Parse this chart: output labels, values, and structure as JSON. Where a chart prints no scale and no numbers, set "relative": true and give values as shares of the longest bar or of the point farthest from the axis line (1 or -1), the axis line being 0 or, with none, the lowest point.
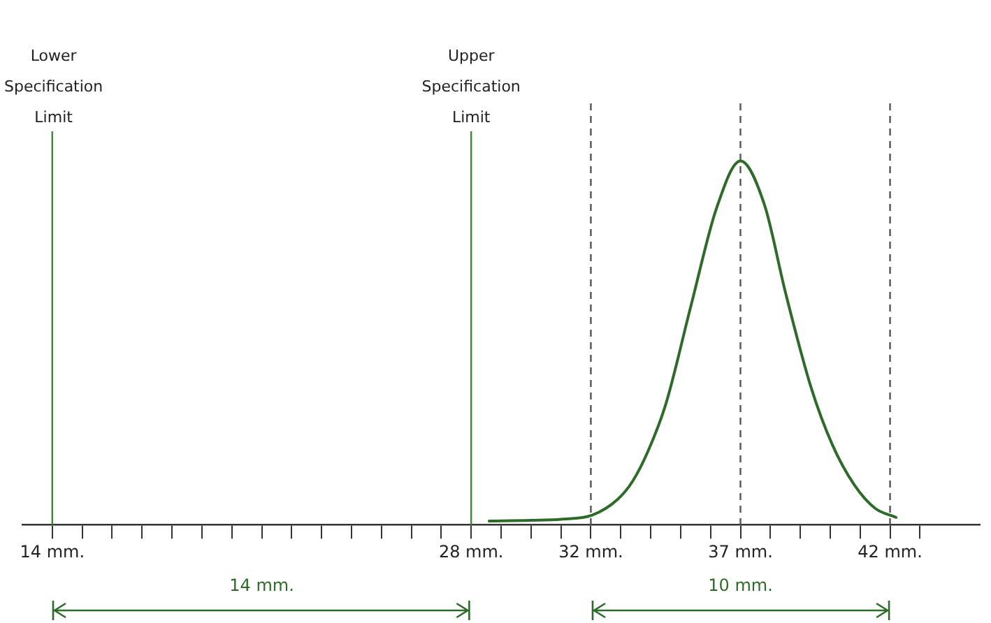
{
  "chart_data": {
    "type": "line",
    "relative": true,
    "tick_labels": "x",
    "marker": "none",
    "line_style": "solid",
    "legend": false,
    "xlim": [
      13,
      45
    ],
    "xticks": [
      {
        "value": 14,
        "label": "14 mm."
      },
      {
        "value": 15,
        "label": null
      },
      {
        "value": 16,
        "label": null
      },
      {
        "value": 17,
        "label": null
      },
      {
        "value": 18,
        "label": null
      },
      {
        "value": 19,
        "label": null
      },
      {
        "value": 20,
        "label": null
      },
      {
        "value": 21,
        "label": null
      },
      {
        "value": 22,
        "label": null
      },
      {
        "value": 23,
        "label": null
      },
      {
        "value": 24,
        "label": null
      },
      {
        "value": 25,
        "label": null
      },
      {
        "value": 26,
        "label": null
      },
      {
        "value": 27,
        "label": null
      },
      {
        "value": 28,
        "label": "28 mm."
      },
      {
        "value": 29,
        "label": null
      },
      {
        "value": 30,
        "label": null
      },
      {
        "value": 31,
        "label": null
      },
      {
        "value": 32,
        "label": "32 mm."
      },
      {
        "value": 33,
        "label": null
      },
      {
        "value": 34,
        "label": null
      },
      {
        "value": 35,
        "label": null
      },
      {
        "value": 36,
        "label": null
      },
      {
        "value": 37,
        "label": "37 mm."
      },
      {
        "value": 38,
        "label": null
      },
      {
        "value": 39,
        "label": null
      },
      {
        "value": 40,
        "label": null
      },
      {
        "value": 41,
        "label": null
      },
      {
        "value": 42,
        "label": "42 mm."
      },
      {
        "value": 43,
        "label": null
      }
    ],
    "series": [
      {
        "color": "#2e6b2a",
        "x": [
          28.6,
          30,
          31,
          32.04,
          32.9,
          33.4,
          33.9,
          34.5,
          35.34,
          36.2,
          37,
          37.8,
          38.5,
          39.35,
          40.07,
          40.8,
          41.5,
          42.2
        ],
        "values": [
          0.01,
          0.012,
          0.015,
          0.026,
          0.07,
          0.12,
          0.2,
          0.33,
          0.6,
          0.87,
          1,
          0.88,
          0.64,
          0.38,
          0.22,
          0.11,
          0.045,
          0.02
        ]
      }
    ],
    "ref_lines": [
      {
        "axis": "x",
        "value": 14,
        "label": "Lower Specification Limit",
        "color": "#3a8a3a",
        "line_style": "solid"
      },
      {
        "axis": "x",
        "value": 28,
        "label": "Upper Specification Limit",
        "color": "#3a8a3a",
        "line_style": "solid"
      },
      {
        "axis": "x",
        "value": 32,
        "color": "#555555",
        "line_style": "dashed"
      },
      {
        "axis": "x",
        "value": 37,
        "color": "#555555",
        "line_style": "dashed"
      },
      {
        "axis": "x",
        "value": 42,
        "color": "#555555",
        "line_style": "dashed"
      }
    ],
    "annotations": [
      "14 mm.",
      "10 mm."
    ]
  }
}
